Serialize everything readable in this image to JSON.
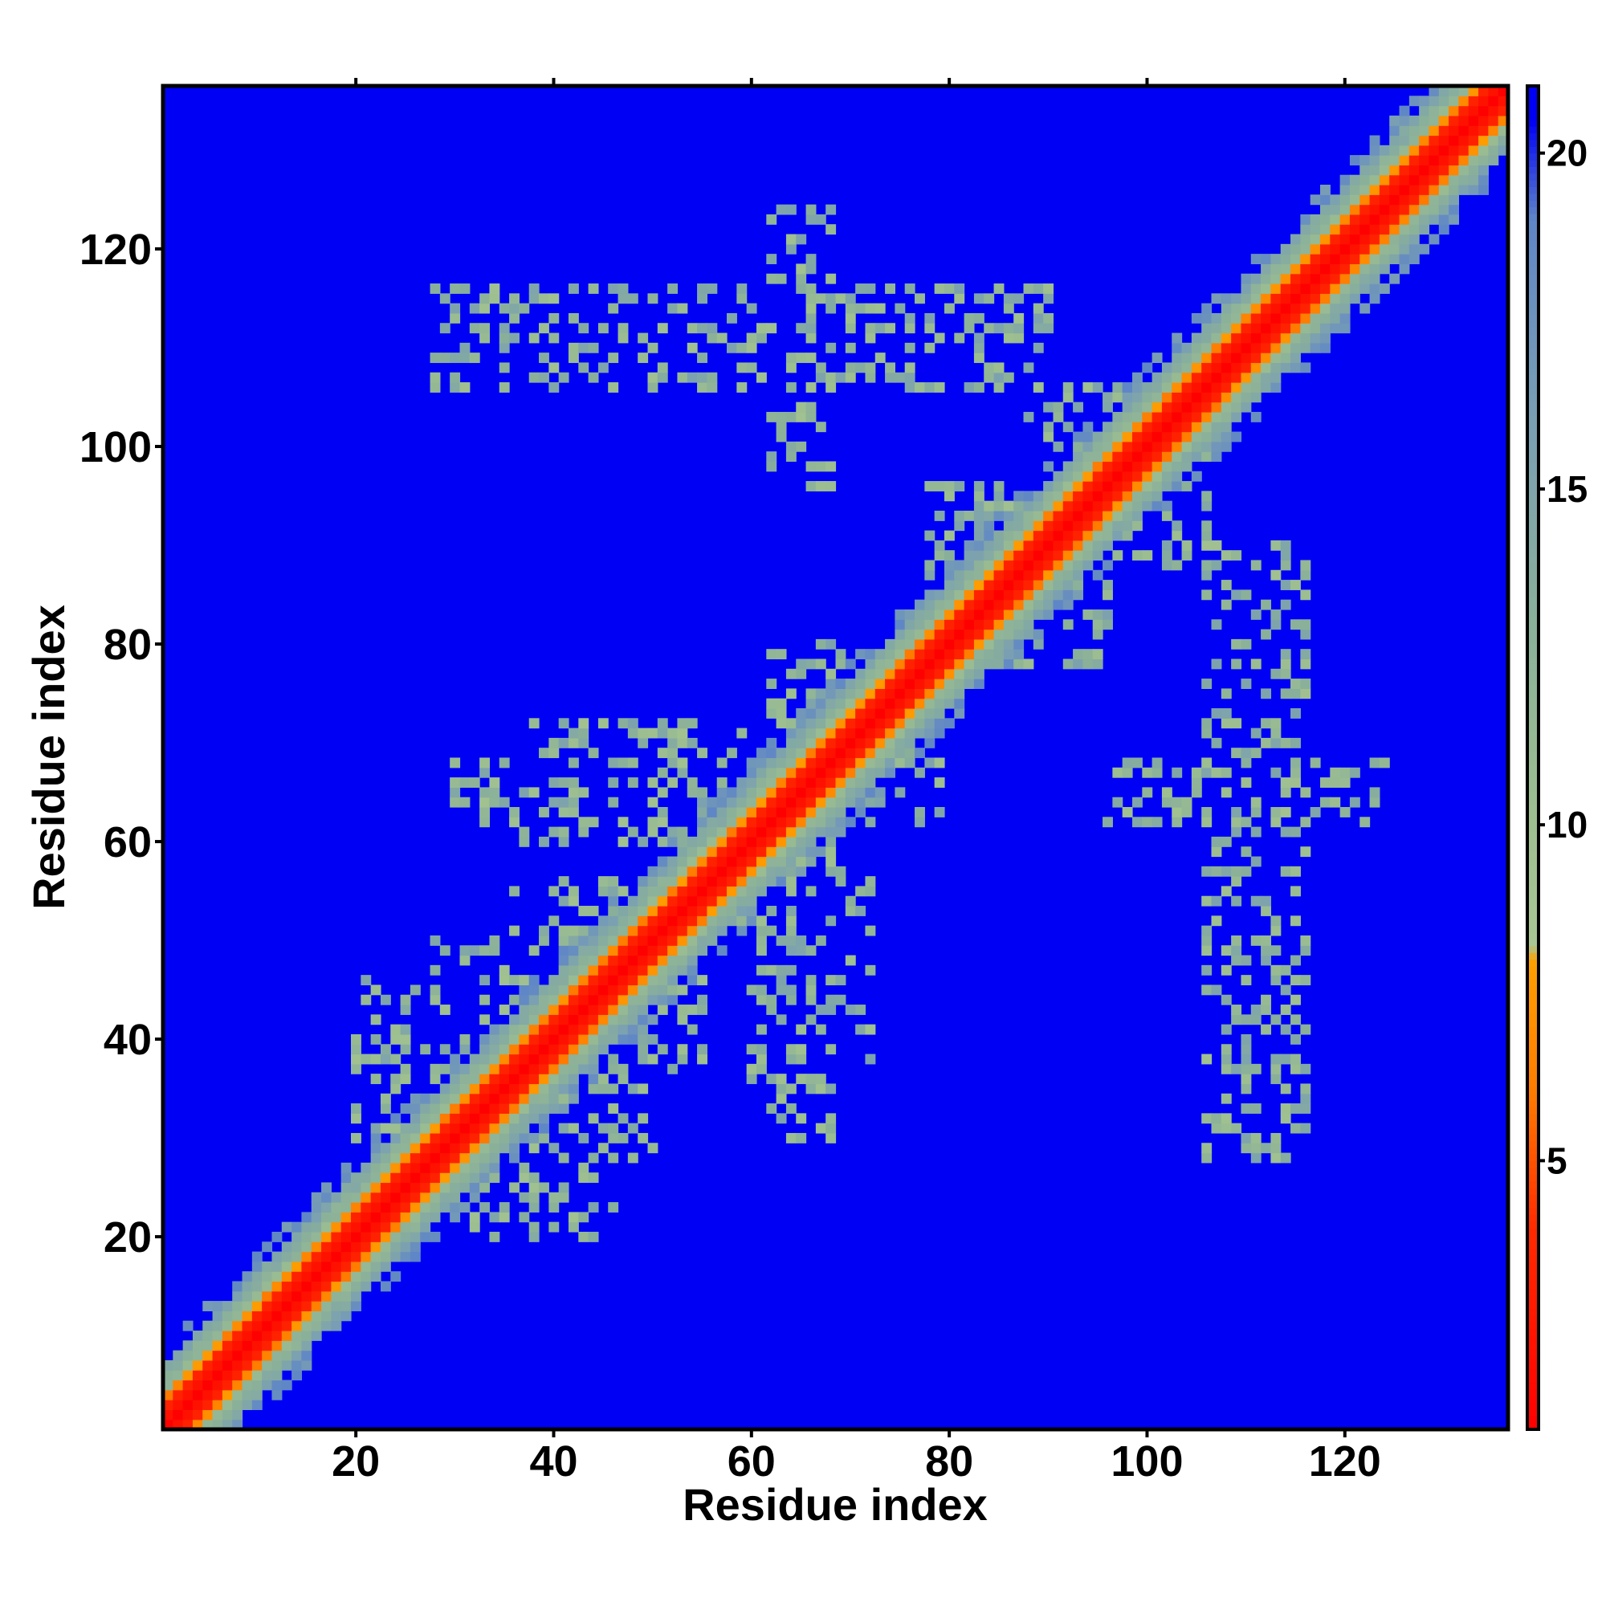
{
  "chart_data": {
    "type": "heatmap",
    "title": "",
    "xlabel": "Residue index",
    "ylabel": "Residue index",
    "xlim": [
      1,
      136
    ],
    "ylim": [
      1,
      136
    ],
    "x_ticks": [
      20,
      40,
      60,
      80,
      100,
      120
    ],
    "y_ticks": [
      20,
      40,
      60,
      80,
      100,
      120
    ],
    "colorbar": {
      "ticks": [
        5,
        10,
        15,
        20
      ],
      "range": [
        1,
        21
      ],
      "palette": [
        {
          "value": 1,
          "color": "#ff0000"
        },
        {
          "value": 4,
          "color": "#ff2a00"
        },
        {
          "value": 6,
          "color": "#ff7a00"
        },
        {
          "value": 8,
          "color": "#ffa000"
        },
        {
          "value": 8.2,
          "color": "#a9c694"
        },
        {
          "value": 10,
          "color": "#9ebf90"
        },
        {
          "value": 13,
          "color": "#8ab09a"
        },
        {
          "value": 16,
          "color": "#7a9fb3"
        },
        {
          "value": 19,
          "color": "#5f86c6"
        },
        {
          "value": 20.5,
          "color": "#0000f5"
        }
      ]
    },
    "background_color": "#0000f5",
    "diagonal_band": {
      "core_halfwidth": 2,
      "orange_halfwidth": 3,
      "green_halfwidth": 6
    },
    "contact_regions": [
      {
        "x": [
          30,
          46
        ],
        "y": [
          20,
          30
        ]
      },
      {
        "x": [
          34,
          50
        ],
        "y": [
          28,
          44
        ]
      },
      {
        "x": [
          40,
          56
        ],
        "y": [
          36,
          48
        ]
      },
      {
        "x": [
          52,
          66
        ],
        "y": [
          54,
          66
        ]
      },
      {
        "x": [
          60,
          72
        ],
        "y": [
          36,
          60
        ]
      },
      {
        "x": [
          64,
          80
        ],
        "y": [
          62,
          80
        ]
      },
      {
        "x": [
          80,
          96
        ],
        "y": [
          78,
          94
        ]
      },
      {
        "x": [
          90,
          104
        ],
        "y": [
          88,
          106
        ]
      },
      {
        "x": [
          28,
          90
        ],
        "y": [
          106,
          116
        ]
      },
      {
        "x": [
          30,
          48
        ],
        "y": [
          62,
          68
        ]
      },
      {
        "x": [
          106,
          114
        ],
        "y": [
          28,
          90
        ]
      },
      {
        "x": [
          96,
          124
        ],
        "y": [
          62,
          68
        ]
      }
    ],
    "grid": false,
    "legend": "colorbar-right"
  }
}
